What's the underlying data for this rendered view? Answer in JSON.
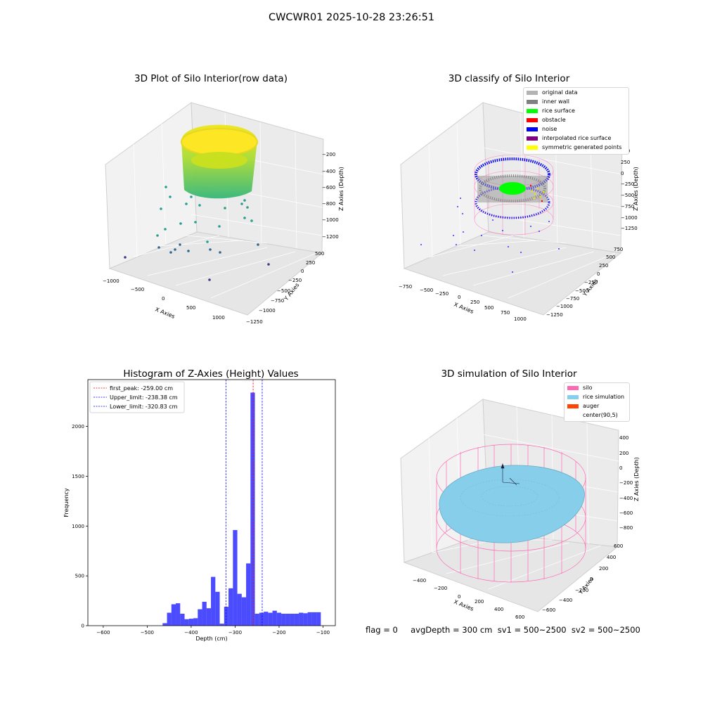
{
  "suptitle": "CWCWR01 2025-10-28 23:26:51",
  "footer": "flag = 0     avgDepth = 300 cm  sv1 = 500~2500  sv2 = 500~2500",
  "panels": {
    "raw": {
      "title": "3D Plot of Silo Interior(row data)",
      "xlabel": "X Axies",
      "ylabel": "Y Axies",
      "zlabel": "Z Axies (Depth)",
      "xticks": [
        "−1000",
        "−500",
        "0",
        "500",
        "1000"
      ],
      "yticks": [
        "−1250",
        "−1000",
        "−750",
        "−500",
        "−250",
        "0",
        "250",
        "500"
      ],
      "zticks": [
        "−1200",
        "−1000",
        "−800",
        "−600",
        "−400",
        "−200"
      ]
    },
    "classify": {
      "title": "3D classify of Silo Interior",
      "xlabel": "X Axies",
      "ylabel": "Y Axies",
      "zlabel": "Z Axies (Depth)",
      "xticks": [
        "−750",
        "−500",
        "−250",
        "0",
        "250",
        "500",
        "750",
        "1000"
      ],
      "yticks": [
        "−1250",
        "−1000",
        "−750",
        "−500",
        "−250",
        "0",
        "250",
        "500",
        "750"
      ],
      "zticks": [
        "−1250",
        "−1000",
        "−750",
        "−500",
        "−250",
        "0",
        "250",
        "500"
      ],
      "legend": [
        {
          "label": "original data",
          "color": "#b3b3b3"
        },
        {
          "label": "inner wall",
          "color": "#808080"
        },
        {
          "label": "rice surface",
          "color": "#00ff00"
        },
        {
          "label": "obstacle",
          "color": "#ff0000"
        },
        {
          "label": "noise",
          "color": "#0000ff"
        },
        {
          "label": "interpolated rice surface",
          "color": "#800080"
        },
        {
          "label": "symmetric generated points",
          "color": "#ffff00"
        }
      ]
    },
    "simulation": {
      "title": "3D simulation of Silo Interior",
      "xlabel": "X Axies",
      "ylabel": "Y Axies",
      "zlabel": "Z Axies (Depth)",
      "xticks": [
        "−400",
        "−200",
        "0",
        "200",
        "400",
        "600"
      ],
      "yticks": [
        "−600",
        "−400",
        "−200",
        "0",
        "200",
        "400",
        "600"
      ],
      "zticks": [
        "−800",
        "−600",
        "−400",
        "−200",
        "0",
        "200",
        "400"
      ],
      "legend": [
        {
          "label": "silo",
          "color": "#ff69b4"
        },
        {
          "label": "rice simulation",
          "color": "#87ceeb"
        },
        {
          "label": "auger",
          "color": "#ff4500"
        },
        {
          "label": "center(90,5)",
          "color": "none"
        }
      ]
    }
  },
  "chart_data": {
    "type": "bar",
    "title": "Histogram of Z-Axies (Height) Values",
    "xlabel": "Depth (cm)",
    "ylabel": "Frequency",
    "xlim": [
      -635,
      -72
    ],
    "ylim": [
      0,
      2470
    ],
    "xticks": [
      -600,
      -500,
      -400,
      -300,
      -200,
      -100
    ],
    "yticks": [
      0,
      500,
      1000,
      1500,
      2000
    ],
    "bar_color": "#0000ff",
    "legend_position": "upper left",
    "bin_edges": [
      -465,
      -455,
      -445,
      -435,
      -425,
      -415,
      -405,
      -395,
      -385,
      -375,
      -365,
      -355,
      -345,
      -335,
      -325,
      -315,
      -305,
      -295,
      -285,
      -275,
      -265,
      -255,
      -245,
      -235,
      -225,
      -215,
      -205,
      -195,
      -185,
      -175,
      -165,
      -155,
      -145,
      -135,
      -125,
      -115,
      -105
    ],
    "counts": [
      25,
      130,
      215,
      225,
      120,
      65,
      70,
      75,
      165,
      240,
      175,
      490,
      340,
      20,
      190,
      375,
      960,
      320,
      285,
      625,
      2340,
      120,
      130,
      140,
      130,
      150,
      130,
      120,
      120,
      120,
      120,
      130,
      125,
      135,
      135,
      135
    ],
    "lines": [
      {
        "label": "first_peak: -259.00 cm",
        "x": -259.0,
        "color": "#ff0000"
      },
      {
        "label": "Upper_limit: -238.38 cm",
        "x": -238.38,
        "color": "#0000ff"
      },
      {
        "label": "Lower_limit: -320.83 cm",
        "x": -320.83,
        "color": "#0000ff"
      }
    ]
  }
}
